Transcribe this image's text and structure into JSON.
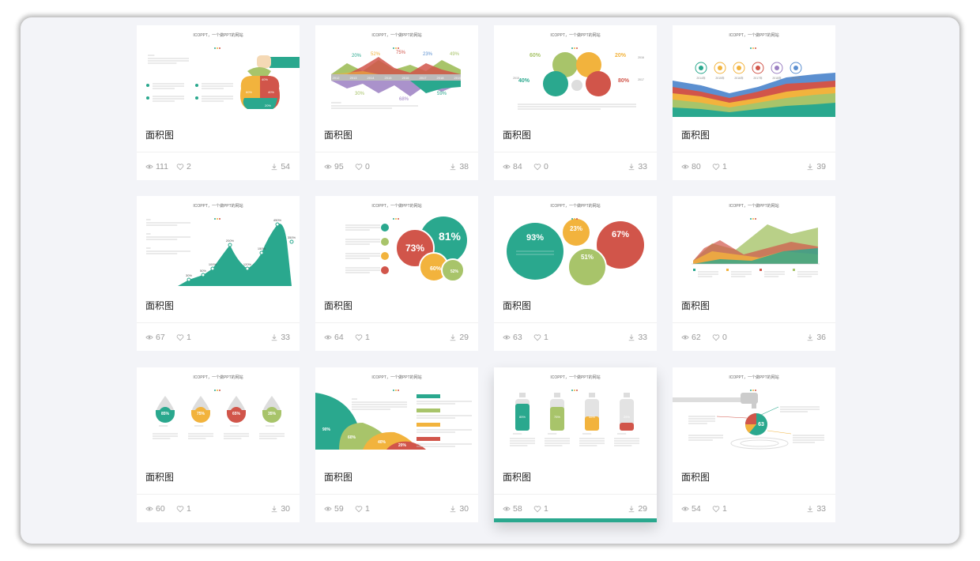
{
  "theme": {
    "teal": "#2aa88e",
    "yellow": "#f2b33d",
    "red": "#d1554a",
    "olive": "#a8c46a",
    "purple": "#9b7fc2",
    "blue": "#5b8fd0"
  },
  "icons": {
    "views": "eye-icon",
    "likes": "heart-icon",
    "downloads": "download-icon"
  },
  "cards": [
    {
      "title": "面积图",
      "thumb_header": "ICOPPT，一个做PPT的网站",
      "views": "111",
      "likes": "2",
      "downloads": "54",
      "active": false
    },
    {
      "title": "面积图",
      "thumb_header": "ICOPPT，一个做PPT的网站",
      "views": "95",
      "likes": "0",
      "downloads": "38",
      "active": false
    },
    {
      "title": "面积图",
      "thumb_header": "ICOPPT，一个做PPT的网站",
      "views": "84",
      "likes": "0",
      "downloads": "33",
      "active": false
    },
    {
      "title": "面积图",
      "thumb_header": "ICOPPT，一个做PPT的网站",
      "views": "80",
      "likes": "1",
      "downloads": "39",
      "active": false
    },
    {
      "title": "面积图",
      "thumb_header": "ICOPPT，一个做PPT的网站",
      "views": "67",
      "likes": "1",
      "downloads": "33",
      "active": false
    },
    {
      "title": "面积图",
      "thumb_header": "ICOPPT，一个做PPT的网站",
      "views": "64",
      "likes": "1",
      "downloads": "29",
      "active": false
    },
    {
      "title": "面积图",
      "thumb_header": "ICOPPT，一个做PPT的网站",
      "views": "63",
      "likes": "1",
      "downloads": "33",
      "active": false
    },
    {
      "title": "面积图",
      "thumb_header": "ICOPPT，一个做PPT的网站",
      "views": "62",
      "likes": "0",
      "downloads": "36",
      "active": false
    },
    {
      "title": "面积图",
      "thumb_header": "ICOPPT，一个做PPT的网站",
      "views": "60",
      "likes": "1",
      "downloads": "30",
      "active": false
    },
    {
      "title": "面积图",
      "thumb_header": "ICOPPT，一个做PPT的网站",
      "views": "59",
      "likes": "1",
      "downloads": "30",
      "active": false
    },
    {
      "title": "面积图",
      "thumb_header": "ICOPPT，一个做PPT的网站",
      "views": "58",
      "likes": "1",
      "downloads": "29",
      "active": true
    },
    {
      "title": "面积图",
      "thumb_header": "ICOPPT，一个做PPT的网站",
      "views": "54",
      "likes": "1",
      "downloads": "33",
      "active": false
    }
  ],
  "thumbs": {
    "t1": {
      "pcts": [
        "40%",
        "60%",
        "40%",
        "20%"
      ]
    },
    "t2": {
      "years": [
        "2012",
        "2013",
        "2014",
        "2015",
        "2016",
        "2017",
        "2018",
        "2019"
      ],
      "pcts": [
        "20%",
        "52%",
        "75%",
        "23%",
        "49%",
        "30%",
        "68%",
        "59%"
      ]
    },
    "t3": {
      "pcts": [
        "60%",
        "40%",
        "20%",
        "80%"
      ],
      "years": [
        "2015",
        "2016",
        "2017"
      ]
    },
    "t4": {
      "years": [
        "2014年",
        "2015年",
        "2016年",
        "2017年",
        "2018年",
        "2019年"
      ]
    },
    "t5": {
      "pcts": [
        "30%",
        "50%",
        "100%",
        "200%",
        "120%",
        "150%",
        "450%",
        "350%"
      ]
    },
    "t6": {
      "pcts": [
        "73%",
        "81%",
        "60%",
        "52%"
      ]
    },
    "t7": {
      "pcts": [
        "93%",
        "23%",
        "67%",
        "51%"
      ]
    },
    "t9": {
      "pcts": [
        "85%",
        "75%",
        "65%",
        "35%"
      ]
    },
    "t10": {
      "pcts": [
        "90%",
        "60%",
        "40%",
        "20%"
      ]
    },
    "t11": {
      "pcts": [
        "85%",
        "75%",
        "45%",
        "25%"
      ]
    },
    "t12": {
      "pcts": [
        "63"
      ]
    }
  }
}
